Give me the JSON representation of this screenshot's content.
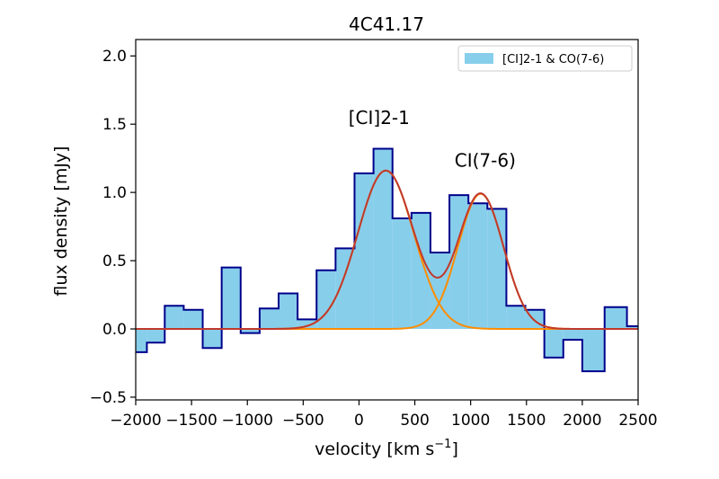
{
  "chart_data": {
    "type": "bar",
    "title": "4C41.17",
    "xlabel": "velocity [km s",
    "xlabel_sup": "−1",
    "xlabel_end": "]",
    "ylabel": "flux density [mJy]",
    "xlim": [
      -2000,
      2500
    ],
    "ylim": [
      -0.52,
      2.12
    ],
    "xticks": [
      -2000,
      -1500,
      -1000,
      -500,
      0,
      500,
      1000,
      1500,
      2000,
      2500
    ],
    "xtick_labels": [
      "−2000",
      "−1500",
      "−1000",
      "−500",
      "0",
      "500",
      "1000",
      "1500",
      "2000",
      "2500"
    ],
    "yticks": [
      -0.5,
      0.0,
      0.5,
      1.0,
      1.5,
      2.0
    ],
    "ytick_labels": [
      "−0.5",
      "0.0",
      "0.5",
      "1.0",
      "1.5",
      "2.0"
    ],
    "grid": false,
    "legend": {
      "position": "top-right",
      "label": "[CI]2-1 & CO(7-6)"
    },
    "bin_edges": [
      -2000,
      -1900,
      -1740,
      -1570,
      -1400,
      -1230,
      -1060,
      -890,
      -720,
      -550,
      -380,
      -210,
      -40,
      130,
      300,
      470,
      640,
      810,
      980,
      1150,
      1320,
      1490,
      1660,
      1830,
      2000,
      2200,
      2400,
      2500
    ],
    "flux": [
      -0.17,
      -0.1,
      0.17,
      0.14,
      -0.14,
      0.45,
      -0.03,
      0.15,
      0.26,
      0.07,
      0.43,
      0.59,
      1.14,
      1.32,
      0.81,
      0.85,
      0.56,
      0.98,
      0.92,
      0.88,
      0.17,
      0.14,
      -0.21,
      -0.08,
      -0.31,
      0.16,
      0.02
    ],
    "gaussians": [
      {
        "label": "[CI]2-1",
        "amplitude": 1.16,
        "center": 240,
        "sigma": 250
      },
      {
        "label": "CI(7-6)",
        "amplitude": 0.99,
        "center": 1090,
        "sigma": 205
      }
    ],
    "annotations": [
      {
        "text": "[CI]2-1",
        "x": 180,
        "y": 1.5
      },
      {
        "text": "CI(7-6)",
        "x": 1130,
        "y": 1.19
      }
    ],
    "colors": {
      "fill": "#87ceeb",
      "step": "#00008b",
      "component": "#ff8c00",
      "total": "#c0392b"
    }
  }
}
